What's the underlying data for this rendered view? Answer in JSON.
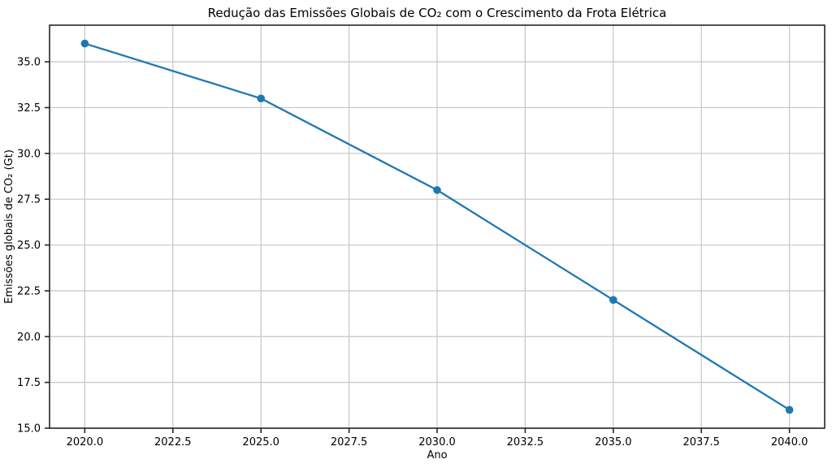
{
  "chart_data": {
    "type": "line",
    "title": "Redução das Emissões Globais de CO₂ com o Crescimento da Frota Elétrica",
    "xlabel": "Ano",
    "ylabel": "Emissões globais de CO₂ (Gt)",
    "x": [
      2020,
      2025,
      2030,
      2035,
      2040
    ],
    "values": [
      36,
      33,
      28,
      22,
      16
    ],
    "xlim": [
      2019,
      2041
    ],
    "ylim": [
      15,
      37
    ],
    "xticks": [
      2020.0,
      2022.5,
      2025.0,
      2027.5,
      2030.0,
      2032.5,
      2035.0,
      2037.5,
      2040.0
    ],
    "yticks": [
      15.0,
      17.5,
      20.0,
      22.5,
      25.0,
      27.5,
      30.0,
      32.5,
      35.0
    ],
    "tick_decimals": 1,
    "grid": true,
    "legend_position": "none",
    "line_color": "#1f77b4",
    "marker": "circle",
    "grid_color": "#c6c6c6",
    "spine_color": "#262626",
    "background_color": "#ffffff"
  }
}
